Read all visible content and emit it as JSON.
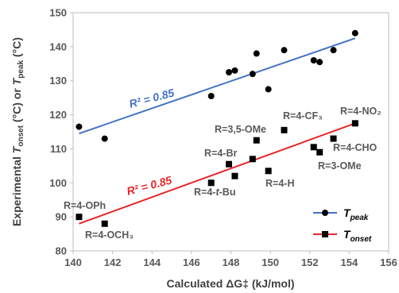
{
  "chart_data": {
    "type": "scatter",
    "xlabel": "Calculated ΔG‡ (kJ/mol)",
    "ylabel": "Experimental T_onset (°C) or T_peak (°C)",
    "xlim": [
      140,
      156
    ],
    "ylim": [
      80,
      150
    ],
    "xticks": [
      140,
      142,
      144,
      146,
      148,
      150,
      152,
      154,
      156
    ],
    "yticks": [
      80,
      90,
      100,
      110,
      120,
      130,
      140,
      150
    ],
    "grid": false,
    "legend_position": "bottom-right",
    "series": [
      {
        "name": "T_peak",
        "marker": "circle",
        "color": "#000000",
        "line_color": "#4472C4",
        "points": [
          {
            "x": 140.3,
            "y": 116.5
          },
          {
            "x": 141.6,
            "y": 113.0
          },
          {
            "x": 147.0,
            "y": 125.5
          },
          {
            "x": 147.9,
            "y": 132.5
          },
          {
            "x": 148.2,
            "y": 133.0
          },
          {
            "x": 149.1,
            "y": 132.0
          },
          {
            "x": 149.3,
            "y": 138.0
          },
          {
            "x": 149.9,
            "y": 127.5
          },
          {
            "x": 150.7,
            "y": 139.0
          },
          {
            "x": 152.2,
            "y": 136.0
          },
          {
            "x": 152.5,
            "y": 135.5
          },
          {
            "x": 153.2,
            "y": 139.0
          },
          {
            "x": 154.3,
            "y": 144.0
          }
        ],
        "trend": {
          "x0": 140.3,
          "y0": 114.5,
          "x1": 154.3,
          "y1": 142.5
        },
        "r2_label": "R² = 0.85"
      },
      {
        "name": "T_onset",
        "marker": "square",
        "color": "#000000",
        "line_color": "#E8262A",
        "points": [
          {
            "x": 140.3,
            "y": 90.0,
            "label": "R=4-OPh"
          },
          {
            "x": 141.6,
            "y": 88.0,
            "label": "R=4-OCH₃"
          },
          {
            "x": 147.0,
            "y": 100.0,
            "label": "R=4-t-Bu"
          },
          {
            "x": 147.9,
            "y": 105.5,
            "label": "R=4-Br"
          },
          {
            "x": 148.2,
            "y": 102.0
          },
          {
            "x": 149.1,
            "y": 107.0
          },
          {
            "x": 149.3,
            "y": 112.5,
            "label": "R=3,5-OMe"
          },
          {
            "x": 149.9,
            "y": 103.5,
            "label": "R=4-H"
          },
          {
            "x": 150.7,
            "y": 115.5,
            "label": "R=4-CF₃"
          },
          {
            "x": 152.2,
            "y": 110.5
          },
          {
            "x": 152.5,
            "y": 109.0,
            "label": "R=3-OMe"
          },
          {
            "x": 153.2,
            "y": 113.0,
            "label": "R=4-CHO"
          },
          {
            "x": 154.3,
            "y": 117.5,
            "label": "R=4-NO₂"
          }
        ],
        "trend": {
          "x0": 140.3,
          "y0": 88.0,
          "x1": 154.3,
          "y1": 117.5
        },
        "r2_label": "R² = 0.85"
      }
    ]
  },
  "legend": {
    "peak_main": "T",
    "peak_sub": "peak",
    "onset_main": "T",
    "onset_sub": "onset"
  },
  "axes_text": {
    "x_title": "Calculated ΔG‡ (kJ/mol)",
    "y_part1": "Experimental ",
    "y_T1": "T",
    "y_sub1": "onset",
    "y_part2": " (°C) or ",
    "y_T2": "T",
    "y_sub2": "peak",
    "y_part3": " (°C)"
  }
}
